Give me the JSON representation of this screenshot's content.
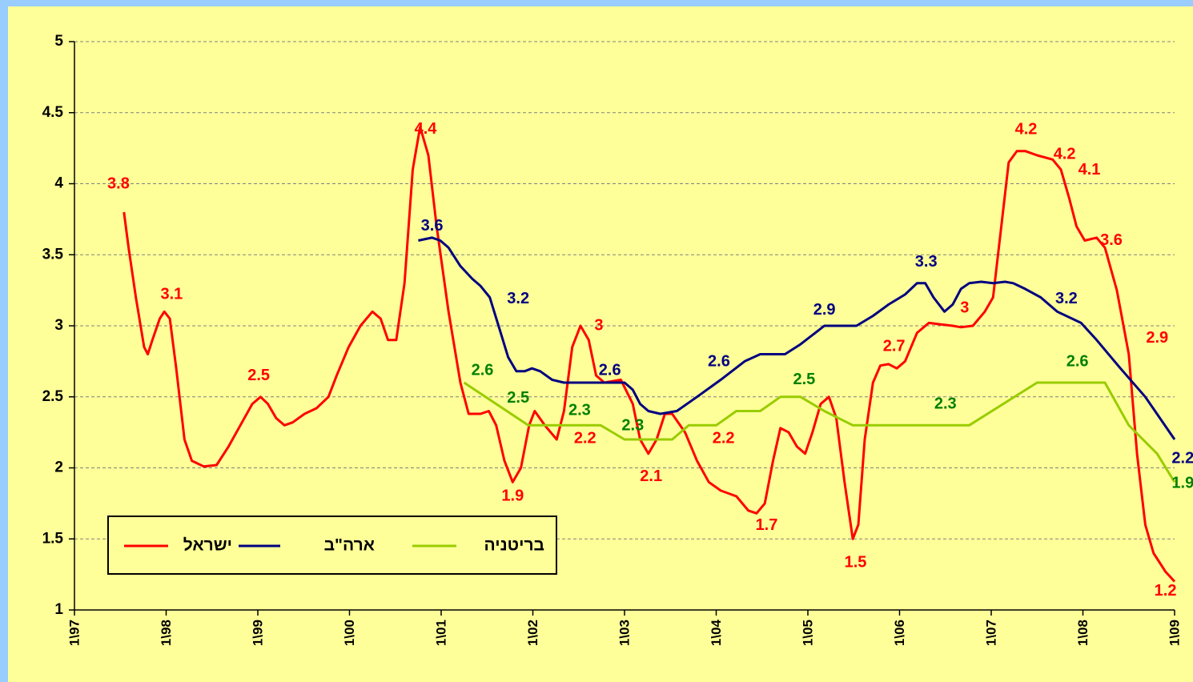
{
  "chart_data": {
    "type": "line",
    "xlim": [
      1997,
      2009
    ],
    "xticks": [
      {
        "value": 1997,
        "label": "1\\97"
      },
      {
        "value": 1998,
        "label": "1\\98"
      },
      {
        "value": 1999,
        "label": "1\\99"
      },
      {
        "value": 2000,
        "label": "1\\00"
      },
      {
        "value": 2001,
        "label": "1\\01"
      },
      {
        "value": 2002,
        "label": "1\\02"
      },
      {
        "value": 2003,
        "label": "1\\03"
      },
      {
        "value": 2004,
        "label": "1\\04"
      },
      {
        "value": 2005,
        "label": "1\\05"
      },
      {
        "value": 2006,
        "label": "1\\06"
      },
      {
        "value": 2007,
        "label": "1\\07"
      },
      {
        "value": 2008,
        "label": "1\\08"
      },
      {
        "value": 2009,
        "label": "1\\09"
      }
    ],
    "ylim": [
      1,
      5
    ],
    "yticks": [
      1,
      1.5,
      2,
      2.5,
      3,
      3.5,
      4,
      4.5,
      5
    ],
    "grid": true,
    "legend": "lower left",
    "series": [
      {
        "name": "ישראל",
        "color": "#ff0000",
        "label_color": "#ff0000",
        "x": [
          1997.54,
          1997.59,
          1997.67,
          1997.76,
          1997.8,
          1997.85,
          1997.93,
          1997.98,
          1998.04,
          1998.11,
          1998.2,
          1998.28,
          1998.41,
          1998.55,
          1998.68,
          1998.81,
          1998.94,
          1999.03,
          1999.11,
          1999.2,
          1999.29,
          1999.38,
          1999.51,
          1999.64,
          1999.77,
          1999.86,
          1999.99,
          2000.12,
          2000.25,
          2000.34,
          2000.42,
          2000.51,
          2000.6,
          2000.69,
          2000.77,
          2000.86,
          2000.95,
          2001.08,
          2001.21,
          2001.3,
          2001.43,
          2001.52,
          2001.6,
          2001.69,
          2001.78,
          2001.87,
          2001.96,
          2002.02,
          2002.13,
          2002.26,
          2002.34,
          2002.43,
          2002.52,
          2002.61,
          2002.69,
          2002.78,
          2002.96,
          2003.09,
          2003.17,
          2003.26,
          2003.35,
          2003.44,
          2003.52,
          2003.66,
          2003.79,
          2003.92,
          2004.05,
          2004.22,
          2004.35,
          2004.44,
          2004.53,
          2004.62,
          2004.7,
          2004.79,
          2004.88,
          2004.97,
          2005.05,
          2005.14,
          2005.23,
          2005.31,
          2005.4,
          2005.49,
          2005.55,
          2005.62,
          2005.71,
          2005.79,
          2005.88,
          2005.97,
          2006.06,
          2006.19,
          2006.32,
          2006.45,
          2006.58,
          2006.67,
          2006.8,
          2006.93,
          2007.02,
          2007.11,
          2007.19,
          2007.28,
          2007.37,
          2007.5,
          2007.67,
          2007.76,
          2007.85,
          2007.93,
          2008.02,
          2008.15,
          2008.24,
          2008.37,
          2008.5,
          2008.59,
          2008.68,
          2008.77,
          2008.9,
          2009.0
        ],
        "values": [
          3.8,
          3.55,
          3.2,
          2.85,
          2.8,
          2.9,
          3.05,
          3.1,
          3.05,
          2.7,
          2.2,
          2.05,
          2.01,
          2.02,
          2.15,
          2.3,
          2.45,
          2.5,
          2.45,
          2.35,
          2.3,
          2.32,
          2.38,
          2.42,
          2.5,
          2.65,
          2.85,
          3.0,
          3.1,
          3.05,
          2.9,
          2.9,
          3.3,
          4.1,
          4.4,
          4.2,
          3.7,
          3.1,
          2.6,
          2.38,
          2.38,
          2.4,
          2.3,
          2.05,
          1.9,
          2.0,
          2.3,
          2.4,
          2.3,
          2.2,
          2.4,
          2.85,
          3.0,
          2.9,
          2.65,
          2.6,
          2.62,
          2.45,
          2.2,
          2.1,
          2.2,
          2.38,
          2.38,
          2.25,
          2.05,
          1.9,
          1.84,
          1.8,
          1.7,
          1.68,
          1.75,
          2.05,
          2.28,
          2.25,
          2.15,
          2.1,
          2.25,
          2.45,
          2.5,
          2.35,
          1.9,
          1.5,
          1.6,
          2.2,
          2.6,
          2.72,
          2.73,
          2.7,
          2.75,
          2.95,
          3.02,
          3.01,
          3.0,
          2.99,
          3.0,
          3.1,
          3.2,
          3.7,
          4.15,
          4.23,
          4.23,
          4.2,
          4.17,
          4.1,
          3.9,
          3.7,
          3.6,
          3.62,
          3.55,
          3.25,
          2.8,
          2.1,
          1.6,
          1.4,
          1.27,
          1.2
        ],
        "point_labels": [
          {
            "x": 1997.48,
            "value": 3.8
          },
          {
            "x": 1998.06,
            "value": 3.1
          },
          {
            "x": 1999.01,
            "value": 2.5
          },
          {
            "x": 2000.83,
            "value": 4.4
          },
          {
            "x": 2001.78,
            "value": 1.9
          },
          {
            "x": 2002.72,
            "value": 3
          },
          {
            "x": 2002.57,
            "value": 2.2
          },
          {
            "x": 2003.29,
            "value": 2.1
          },
          {
            "x": 2004.08,
            "value": 2.2
          },
          {
            "x": 2004.55,
            "value": 1.7
          },
          {
            "x": 2005.52,
            "value": 1.5
          },
          {
            "x": 2005.94,
            "value": 2.7
          },
          {
            "x": 2006.71,
            "value": 3
          },
          {
            "x": 2007.38,
            "value": 4.2
          },
          {
            "x": 2007.8,
            "value": 4.2
          },
          {
            "x": 2008.07,
            "value": 4.1
          },
          {
            "x": 2008.31,
            "value": 3.6
          },
          {
            "x": 2008.81,
            "value": 2.9
          },
          {
            "x": 2008.9,
            "value": 1.2
          }
        ]
      },
      {
        "name": "ארה\"ב",
        "color": "#000080",
        "label_color": "#000080",
        "x": [
          2000.75,
          2000.9,
          2000.99,
          2001.08,
          2001.21,
          2001.34,
          2001.43,
          2001.53,
          2001.65,
          2001.73,
          2001.82,
          2001.91,
          2001.99,
          2002.08,
          2002.21,
          2002.34,
          2002.52,
          2002.69,
          2002.87,
          2003.0,
          2003.09,
          2003.17,
          2003.26,
          2003.39,
          2003.57,
          2003.79,
          2004.05,
          2004.31,
          2004.48,
          2004.75,
          2004.92,
          2005.18,
          2005.53,
          2005.71,
          2005.88,
          2006.06,
          2006.19,
          2006.28,
          2006.37,
          2006.49,
          2006.58,
          2006.67,
          2006.76,
          2006.89,
          2007.02,
          2007.15,
          2007.24,
          2007.37,
          2007.54,
          2007.72,
          2007.98,
          2008.15,
          2008.41,
          2008.68,
          2009.0
        ],
        "values": [
          3.6,
          3.62,
          3.6,
          3.55,
          3.42,
          3.33,
          3.28,
          3.2,
          2.95,
          2.78,
          2.68,
          2.68,
          2.7,
          2.68,
          2.62,
          2.6,
          2.6,
          2.6,
          2.6,
          2.6,
          2.55,
          2.45,
          2.4,
          2.38,
          2.4,
          2.5,
          2.62,
          2.75,
          2.8,
          2.8,
          2.87,
          3.0,
          3.0,
          3.07,
          3.15,
          3.22,
          3.3,
          3.3,
          3.2,
          3.1,
          3.15,
          3.26,
          3.3,
          3.31,
          3.3,
          3.31,
          3.3,
          3.26,
          3.2,
          3.1,
          3.02,
          2.9,
          2.7,
          2.5,
          2.2
        ],
        "point_labels": [
          {
            "x": 2000.9,
            "value": 3.6
          },
          {
            "x": 2001.84,
            "value": 3.2
          },
          {
            "x": 2002.84,
            "value": 2.6
          },
          {
            "x": 2004.03,
            "value": 2.6
          },
          {
            "x": 2005.18,
            "value": 2.9
          },
          {
            "x": 2006.29,
            "value": 3.3
          },
          {
            "x": 2007.82,
            "value": 3.2
          },
          {
            "x": 2009.09,
            "value": 2.2
          }
        ]
      },
      {
        "name": "בריטניה",
        "color": "#99cc00",
        "label_color": "#008000",
        "x": [
          2001.25,
          2001.95,
          2002.74,
          2003.0,
          2003.52,
          2003.7,
          2004.0,
          2004.22,
          2004.48,
          2004.7,
          2004.92,
          2005.18,
          2005.49,
          2006.76,
          2007.5,
          2008.24,
          2008.5,
          2008.81,
          2009.0
        ],
        "values": [
          2.6,
          2.3,
          2.3,
          2.2,
          2.2,
          2.3,
          2.3,
          2.4,
          2.4,
          2.5,
          2.5,
          2.4,
          2.3,
          2.3,
          2.6,
          2.6,
          2.3,
          2.1,
          1.9
        ],
        "point_labels": [
          {
            "x": 2001.45,
            "value": 2.6
          },
          {
            "x": 2001.84,
            "value": 2.5
          },
          {
            "x": 2002.51,
            "value": 2.3
          },
          {
            "x": 2003.09,
            "value": 2.3
          },
          {
            "x": 2004.96,
            "value": 2.5
          },
          {
            "x": 2006.5,
            "value": 2.3
          },
          {
            "x": 2007.94,
            "value": 2.6
          },
          {
            "x": 2009.09,
            "value": 1.9
          }
        ]
      }
    ]
  }
}
